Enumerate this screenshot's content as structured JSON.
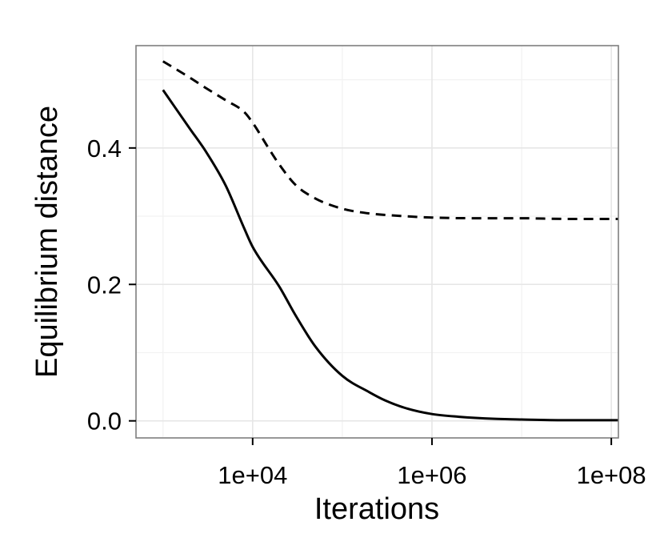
{
  "chart_data": {
    "type": "line",
    "title": "",
    "xlabel": "Iterations",
    "ylabel": "Equilibrium distance",
    "x_scale": "log10",
    "xlim": [
      500,
      120000000
    ],
    "ylim": [
      -0.025,
      0.55
    ],
    "x_ticks": [
      {
        "value": 10000,
        "label": "1e+04"
      },
      {
        "value": 1000000,
        "label": "1e+06"
      },
      {
        "value": 100000000,
        "label": "1e+08"
      }
    ],
    "y_ticks": [
      {
        "value": 0.0,
        "label": "0.0"
      },
      {
        "value": 0.2,
        "label": "0.2"
      },
      {
        "value": 0.4,
        "label": "0.4"
      }
    ],
    "grid": true,
    "legend": "none",
    "series": [
      {
        "style": "dashed",
        "color": "#000000",
        "x": [
          1000,
          2000,
          3000,
          5000,
          8000,
          10000,
          15000,
          20000,
          30000,
          50000,
          100000,
          200000,
          500000,
          1000000,
          3000000,
          10000000,
          30000000,
          100000000,
          120000000
        ],
        "y": [
          0.527,
          0.503,
          0.488,
          0.47,
          0.453,
          0.437,
          0.4,
          0.375,
          0.346,
          0.326,
          0.311,
          0.304,
          0.3,
          0.298,
          0.297,
          0.297,
          0.296,
          0.296,
          0.296
        ]
      },
      {
        "style": "solid",
        "color": "#000000",
        "x": [
          1000,
          2000,
          3000,
          5000,
          8000,
          10000,
          20000,
          30000,
          50000,
          100000,
          200000,
          300000,
          500000,
          1000000,
          2000000,
          5000000,
          10000000,
          30000000,
          100000000,
          120000000
        ],
        "y": [
          0.485,
          0.428,
          0.395,
          0.345,
          0.283,
          0.255,
          0.196,
          0.155,
          0.109,
          0.066,
          0.042,
          0.03,
          0.019,
          0.01,
          0.006,
          0.003,
          0.002,
          0.001,
          0.001,
          0.001
        ]
      }
    ]
  }
}
